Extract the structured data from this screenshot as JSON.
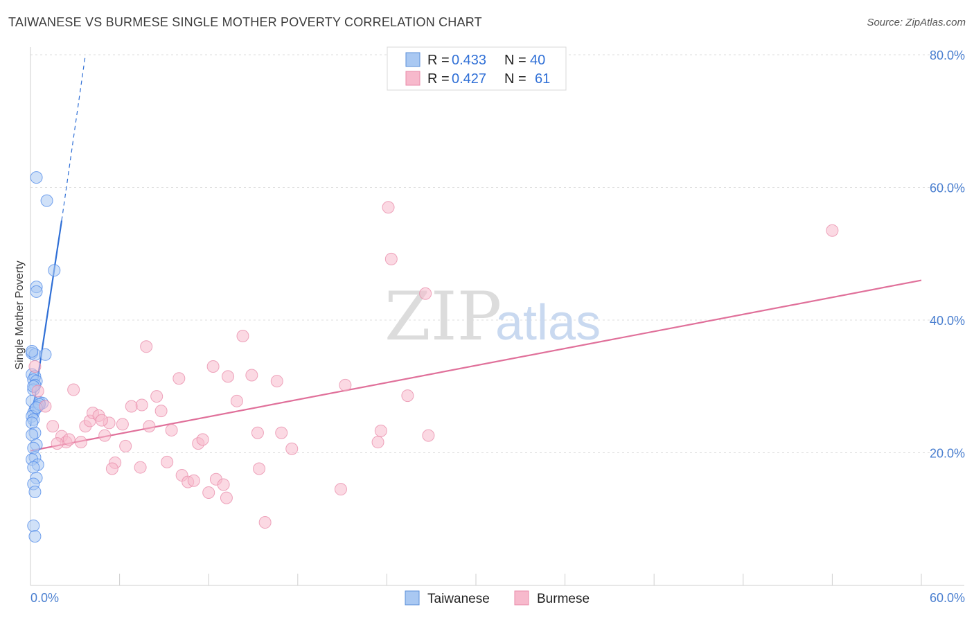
{
  "header": {
    "title": "TAIWANESE VS BURMESE SINGLE MOTHER POVERTY CORRELATION CHART",
    "source": "Source: ZipAtlas.com"
  },
  "watermark": {
    "zip": "ZIP",
    "atlas": "atlas"
  },
  "legend": {
    "r_label": "R = ",
    "n_label": "N = ",
    "rows": [
      {
        "r": "0.433",
        "n": "40",
        "color": "#a9c8f2"
      },
      {
        "r": "0.427",
        "n": "61",
        "color": "#f7b9cc"
      }
    ]
  },
  "bottom_legend": [
    "Taiwanese",
    "Burmese"
  ],
  "chart_data": {
    "type": "scatter",
    "title": "TAIWANESE VS BURMESE SINGLE MOTHER POVERTY CORRELATION CHART",
    "xlabel": "",
    "ylabel": "Single Mother Poverty",
    "xlim": [
      0,
      60
    ],
    "ylim": [
      0,
      80
    ],
    "x_tick_labels": [
      "0.0%",
      "60.0%"
    ],
    "y_tick_labels": [
      "20.0%",
      "40.0%",
      "60.0%",
      "80.0%"
    ],
    "y_ticks": [
      20,
      40,
      60,
      80
    ],
    "grid": true,
    "legend_position": "top-center",
    "series": [
      {
        "name": "Taiwanese",
        "color": "#4a86e8",
        "fill": "#a9c8f2",
        "line_color": "#2f6fd6",
        "trend": {
          "x": [
            0,
            2.1
          ],
          "y": [
            24,
            55
          ]
        },
        "trend_dashed": {
          "x": [
            2.1,
            3.7
          ],
          "y": [
            55,
            80
          ]
        },
        "points": [
          [
            0.4,
            61.5
          ],
          [
            1.1,
            58
          ],
          [
            1.6,
            47.5
          ],
          [
            0.4,
            45
          ],
          [
            0.4,
            44.3
          ],
          [
            0.1,
            35
          ],
          [
            0.3,
            34.8
          ],
          [
            1.0,
            34.8
          ],
          [
            0.1,
            31.8
          ],
          [
            0.3,
            31.5
          ],
          [
            0.2,
            31
          ],
          [
            0.4,
            30.8
          ],
          [
            0.3,
            30.2
          ],
          [
            0.2,
            29.5
          ],
          [
            0.1,
            27.8
          ],
          [
            0.6,
            27.6
          ],
          [
            0.8,
            27.5
          ],
          [
            0.5,
            27.0
          ],
          [
            0.3,
            26.5
          ],
          [
            0.2,
            26.0
          ],
          [
            0.1,
            25.5
          ],
          [
            0.2,
            25
          ],
          [
            0.1,
            24.5
          ],
          [
            0.3,
            23
          ],
          [
            0.1,
            22.7
          ],
          [
            0.4,
            21.2
          ],
          [
            0.2,
            20.7
          ],
          [
            0.3,
            19.3
          ],
          [
            0.1,
            19
          ],
          [
            0.5,
            18.2
          ],
          [
            0.2,
            17.8
          ],
          [
            0.4,
            16.2
          ],
          [
            0.2,
            15.3
          ],
          [
            0.3,
            14.1
          ],
          [
            0.2,
            9
          ],
          [
            0.3,
            7.4
          ],
          [
            0.1,
            35.3
          ],
          [
            0.2,
            30
          ],
          [
            0.6,
            27.3
          ],
          [
            0.4,
            26.8
          ]
        ]
      },
      {
        "name": "Burmese",
        "color": "#e88aa8",
        "fill": "#f7b9cc",
        "line_color": "#e0709a",
        "trend": {
          "x": [
            0,
            60
          ],
          "y": [
            20.3,
            46
          ]
        },
        "points": [
          [
            0.3,
            33
          ],
          [
            0.5,
            29.3
          ],
          [
            1,
            27
          ],
          [
            2.9,
            29.5
          ],
          [
            1.5,
            24
          ],
          [
            2.1,
            22.5
          ],
          [
            2.4,
            21.6
          ],
          [
            2.6,
            22
          ],
          [
            1.8,
            21.4
          ],
          [
            3.4,
            21.6
          ],
          [
            3.7,
            24
          ],
          [
            4.0,
            24.8
          ],
          [
            4.2,
            26
          ],
          [
            4.6,
            25.6
          ],
          [
            5.0,
            22.6
          ],
          [
            5.3,
            24.5
          ],
          [
            6.2,
            24.3
          ],
          [
            6.4,
            21
          ],
          [
            6.8,
            27
          ],
          [
            7.5,
            27.2
          ],
          [
            7.8,
            36
          ],
          [
            8.0,
            24
          ],
          [
            8.5,
            28.5
          ],
          [
            8.8,
            26.3
          ],
          [
            9.2,
            18.6
          ],
          [
            9.5,
            23.4
          ],
          [
            10.0,
            31.2
          ],
          [
            10.2,
            16.6
          ],
          [
            10.6,
            15.6
          ],
          [
            11.0,
            15.8
          ],
          [
            11.3,
            21.4
          ],
          [
            11.6,
            22
          ],
          [
            12.0,
            14
          ],
          [
            12.3,
            33
          ],
          [
            12.5,
            16
          ],
          [
            13.3,
            31.5
          ],
          [
            13.9,
            27.8
          ],
          [
            14.3,
            37.6
          ],
          [
            13.2,
            13.2
          ],
          [
            13.0,
            15.2
          ],
          [
            14.9,
            31.7
          ],
          [
            15.3,
            23
          ],
          [
            15.4,
            17.6
          ],
          [
            15.8,
            9.5
          ],
          [
            16.6,
            30.8
          ],
          [
            16.9,
            23
          ],
          [
            17.6,
            20.6
          ],
          [
            20.9,
            14.5
          ],
          [
            21.2,
            30.2
          ],
          [
            23.4,
            21.6
          ],
          [
            23.6,
            23.3
          ],
          [
            24.1,
            57
          ],
          [
            24.3,
            49.2
          ],
          [
            25.4,
            28.6
          ],
          [
            26.6,
            44
          ],
          [
            26.8,
            22.6
          ],
          [
            54.0,
            53.5
          ],
          [
            5.7,
            18.5
          ],
          [
            7.4,
            17.8
          ],
          [
            5.5,
            17.6
          ],
          [
            4.8,
            24.9
          ]
        ]
      }
    ]
  }
}
